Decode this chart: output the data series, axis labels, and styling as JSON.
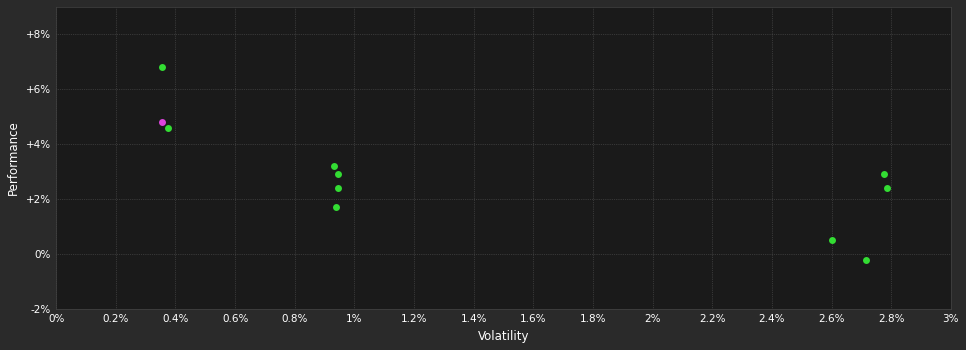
{
  "background_color": "#2a2a2a",
  "plot_bg_color": "#1a1a1a",
  "grid_color": "#555555",
  "axis_label_color": "#ffffff",
  "tick_label_color": "#ffffff",
  "xlabel": "Volatility",
  "ylabel": "Performance",
  "xlim": [
    0.0,
    0.03
  ],
  "ylim": [
    -0.02,
    0.09
  ],
  "yticks": [
    -0.02,
    0.0,
    0.02,
    0.04,
    0.06,
    0.08
  ],
  "xticks": [
    0.0,
    0.002,
    0.004,
    0.006,
    0.008,
    0.01,
    0.012,
    0.014,
    0.016,
    0.018,
    0.02,
    0.022,
    0.024,
    0.026,
    0.028,
    0.03
  ],
  "green_points": [
    [
      0.00355,
      0.068
    ],
    [
      0.00375,
      0.046
    ],
    [
      0.0093,
      0.032
    ],
    [
      0.00945,
      0.029
    ],
    [
      0.00945,
      0.024
    ],
    [
      0.0094,
      0.017
    ],
    [
      0.026,
      0.005
    ],
    [
      0.02715,
      -0.002
    ],
    [
      0.02775,
      0.029
    ],
    [
      0.02785,
      0.024
    ]
  ],
  "magenta_points": [
    [
      0.00355,
      0.048
    ]
  ],
  "green_color": "#33dd33",
  "magenta_color": "#dd44dd",
  "marker_size": 5,
  "figsize": [
    9.66,
    3.5
  ],
  "dpi": 100
}
